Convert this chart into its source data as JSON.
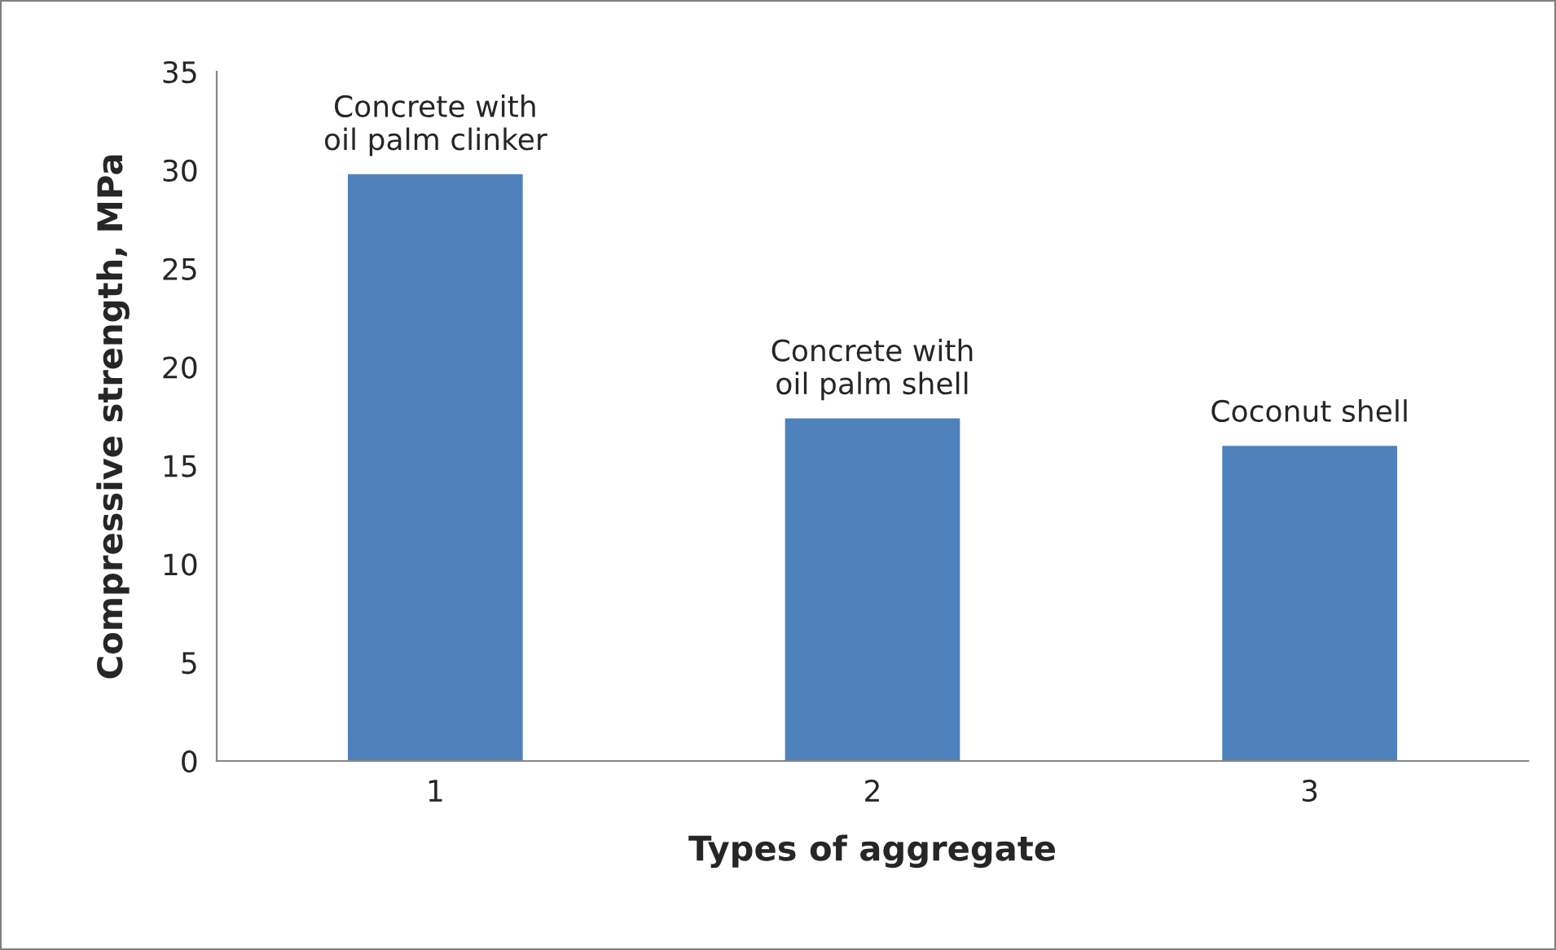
{
  "chart_data": {
    "type": "bar",
    "categories": [
      "1",
      "2",
      "3"
    ],
    "values": [
      29.8,
      17.4,
      16.0
    ],
    "color": "#4f81bd",
    "xlabel": "Types of aggregate",
    "ylabel": "Compressive strength, MPa",
    "ylim": [
      0,
      35
    ],
    "yticks": [
      0,
      5,
      10,
      15,
      20,
      25,
      30,
      35
    ],
    "grid": false,
    "legend": false,
    "annotations": [
      {
        "text": "Concrete with\noil palm clinker",
        "x": "1",
        "y": 29.8
      },
      {
        "text": "Concrete with\noil palm shell",
        "x": "2",
        "y": 17.4
      },
      {
        "text": "Coconut shell",
        "x": "3",
        "y": 16.0
      }
    ]
  }
}
